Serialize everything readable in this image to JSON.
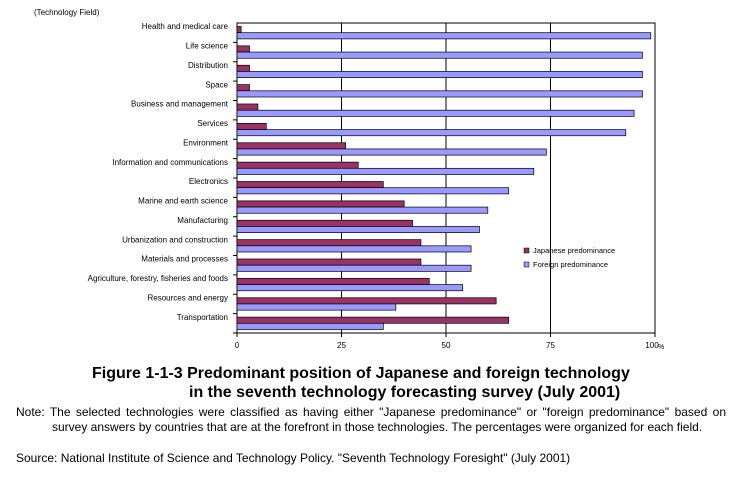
{
  "chart_data": {
    "type": "bar",
    "orientation": "horizontal",
    "title": "",
    "ylabel": "(Technology Field)",
    "xlabel": "",
    "xunit": "%",
    "xlim": [
      0,
      100
    ],
    "xticks": [
      "0",
      "25",
      "50",
      "75",
      "100"
    ],
    "grid": true,
    "legend_position": "right",
    "categories": [
      "Health and medical care",
      "Life science",
      "Distribution",
      "Space",
      "Business and management",
      "Services",
      "Environment",
      "Information and communications",
      "Electronics",
      "Marine and earth science",
      "Manufacturing",
      "Urbanization and construction",
      "Materials and processes",
      "Agriculture, forestry, fisheries and foods",
      "Resources and energy",
      "Transportation"
    ],
    "series": [
      {
        "name": "Japanese predominance",
        "color": "#993366",
        "values": [
          1,
          3,
          3,
          3,
          5,
          7,
          26,
          29,
          35,
          40,
          42,
          44,
          44,
          46,
          62,
          65
        ]
      },
      {
        "name": "Foreign predominance",
        "color": "#9999ff",
        "values": [
          99,
          97,
          97,
          97,
          95,
          93,
          74,
          71,
          65,
          60,
          58,
          56,
          56,
          54,
          38,
          35
        ]
      }
    ]
  },
  "caption": {
    "title_line1": "Figure 1-1-3  Predominant position of Japanese and foreign technology",
    "title_line2": "in the seventh technology forecasting survey (July 2001)",
    "note": "Note: The selected technologies were classified as having either \"Japanese predominance\" or \"foreign predominance\" based on survey answers by countries that are at the forefront in those technologies. The percentages were organized for each field.",
    "source": "Source: National Institute of Science and Technology Policy. \"Seventh Technology Foresight\" (July 2001)"
  }
}
